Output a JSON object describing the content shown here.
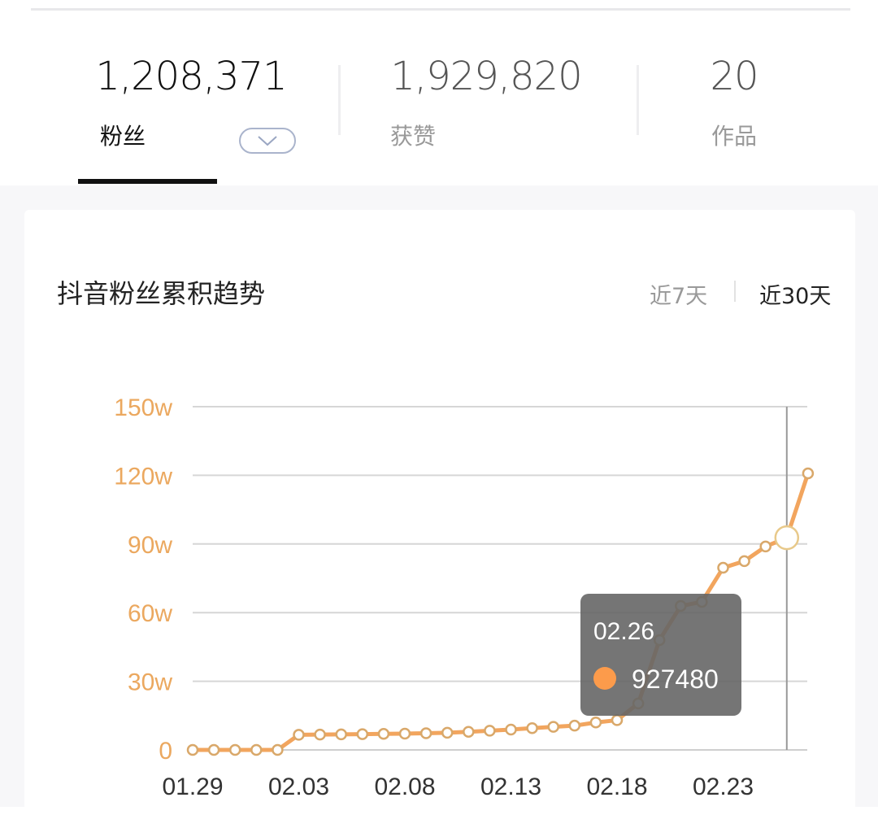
{
  "stats": [
    {
      "value": "1,208,371",
      "label": "粉丝",
      "active": true
    },
    {
      "value": "1,929,820",
      "label": "获赞",
      "active": false
    },
    {
      "value": "20",
      "label": "作品",
      "active": false
    }
  ],
  "dropdown_icon": "chevron-down-icon",
  "chart_card": {
    "title": "抖音粉丝累积趋势",
    "ranges": [
      {
        "label": "近7天",
        "active": false
      },
      {
        "label": "近30天",
        "active": true
      }
    ]
  },
  "colors": {
    "line": "#f2a55e",
    "axis_label": "#eba85f",
    "tooltip_bg": "#666666",
    "tooltip_dot": "#fc9b4b"
  },
  "chart_data": {
    "type": "line",
    "title": "抖音粉丝累积趋势",
    "xlabel": "",
    "ylabel": "",
    "x": [
      "01.29",
      "01.30",
      "01.31",
      "02.01",
      "02.02",
      "02.03",
      "02.04",
      "02.05",
      "02.06",
      "02.07",
      "02.08",
      "02.09",
      "02.10",
      "02.11",
      "02.12",
      "02.13",
      "02.14",
      "02.15",
      "02.16",
      "02.17",
      "02.18",
      "02.19",
      "02.20",
      "02.21",
      "02.22",
      "02.23",
      "02.24",
      "02.25",
      "02.26",
      "02.27"
    ],
    "x_tick_labels": [
      "01.29",
      "02.03",
      "02.08",
      "02.13",
      "02.18",
      "02.23"
    ],
    "values": [
      0,
      0,
      0,
      0,
      0,
      66000,
      67000,
      68000,
      69000,
      70000,
      71000,
      73000,
      75000,
      79000,
      84000,
      89000,
      95000,
      101000,
      106000,
      120000,
      130000,
      203000,
      480000,
      629000,
      647000,
      796000,
      825000,
      889000,
      927480,
      1208371
    ],
    "ylim": [
      0,
      1500000
    ],
    "y_ticks": [
      0,
      300000,
      600000,
      900000,
      1200000,
      1500000
    ],
    "y_tick_labels": [
      "0",
      "30w",
      "60w",
      "90w",
      "120w",
      "150w"
    ],
    "grid": true,
    "tooltip": {
      "date": "02.26",
      "value": "927480"
    }
  }
}
